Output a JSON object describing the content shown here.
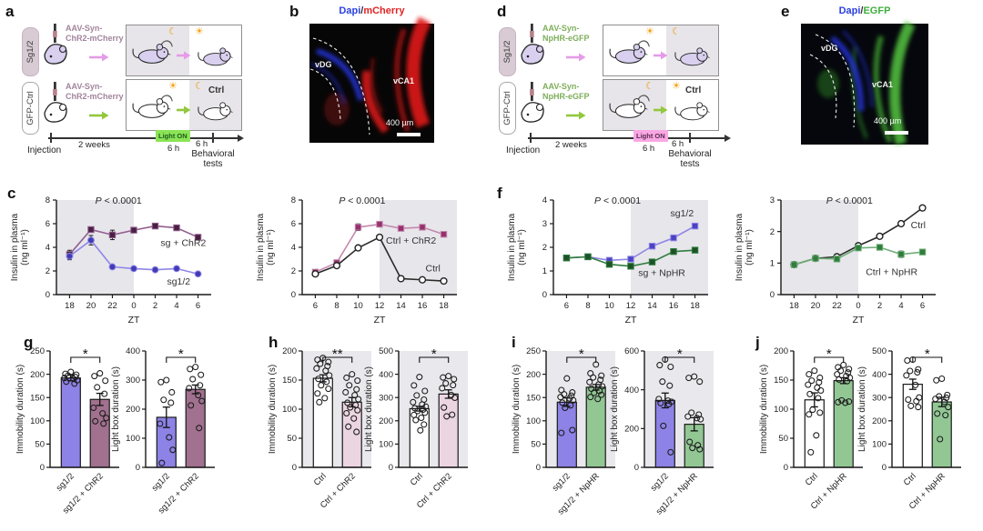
{
  "panels": {
    "a": "a",
    "b": "b",
    "c": "c",
    "d": "d",
    "e": "e",
    "f": "f",
    "g": "g",
    "h": "h",
    "i": "i",
    "j": "j"
  },
  "colors": {
    "mouse_purple": "#D9CFEF",
    "mouse_white": "#ffffff",
    "arrow_pink": "#E59BE8",
    "arrow_green": "#93C83E",
    "lighton_green_bg": "#8BE455",
    "lighton_green_text": "#1E5B1E",
    "lighton_pink_bg": "#F9A7E3",
    "lighton_pink_text": "#5A2A52",
    "virus_chr2": "#A2849C",
    "virus_nphr": "#7FAE5B",
    "dapi_blue": "#2B3FE0",
    "mcherry_red": "#E02424",
    "egfp_green": "#3FAE3F",
    "slash_dark": "#333333"
  },
  "panel_a": {
    "group1": "Sg1/2",
    "group2": "GFP-Ctrl",
    "virus1_line1": "AAV-Syn-",
    "virus1_line2": "ChR2-mCherry",
    "virus2_line1": "AAV-Syn-",
    "virus2_line2": "ChR2-mCherry",
    "ctrl": "Ctrl",
    "timeline": {
      "injection": "Injection",
      "weeks": "2 weeks",
      "light_on": "Light ON",
      "dur_light": "6 h",
      "dur_post": "6 h",
      "behavioral": "Behavioral tests"
    }
  },
  "panel_b": {
    "title1": "Dapi",
    "slash": "/",
    "title2": "mCherry",
    "region1": "vDG",
    "region2": "vCA1",
    "scale": "400 µm"
  },
  "panel_d": {
    "group1": "Sg1/2",
    "group2": "GFP-Ctrl",
    "virus1_line1": "AAV-Syn-",
    "virus1_line2": "NpHR-eGFP",
    "virus2_line1": "AAV-Syn-",
    "virus2_line2": "NpHR-eGFP",
    "ctrl": "Ctrl",
    "timeline": {
      "injection": "Injection",
      "weeks": "2 weeks",
      "light_on": "Light ON",
      "dur_light": "6 h",
      "dur_post": "6 h",
      "behavioral": "Behavioral tests"
    }
  },
  "panel_e": {
    "title1": "Dapi",
    "slash": "/",
    "title2": "EGFP",
    "region1": "vDG",
    "region2": "vCA1",
    "scale": "400 µm"
  },
  "chart_data": [
    {
      "id": "c1",
      "panel": "c",
      "type": "line",
      "xlabel": "ZT",
      "ylabel1": "Insulin in plasma",
      "ylabel2": "(ng ml⁻¹)",
      "categories": [
        "18",
        "20",
        "22",
        "0",
        "2",
        "4",
        "6"
      ],
      "ylim": [
        0,
        8
      ],
      "yticks": [
        0,
        2,
        4,
        6,
        8
      ],
      "shade": [
        -0.8,
        3
      ],
      "p_label": "P < 0.0001",
      "p_pos": [
        1.2,
        7.7
      ],
      "series": [
        {
          "name": "sg + ChR2",
          "color": "#915F8E",
          "marker": "square",
          "marker_fill": "#4A1F42",
          "values": [
            3.4,
            5.5,
            5.05,
            5.45,
            5.8,
            5.65,
            4.85
          ],
          "err": [
            0.35,
            0.2,
            0.4,
            0.12,
            0.1,
            0.12,
            0.1
          ],
          "label_at": [
            4.25,
            4.1
          ]
        },
        {
          "name": "sg1/2",
          "color": "#8F85E6",
          "marker": "circle",
          "marker_fill": "#423BB5",
          "values": [
            3.25,
            4.6,
            2.35,
            2.2,
            2.1,
            2.2,
            1.75
          ],
          "err": [
            0.3,
            0.4,
            0.12,
            0.1,
            0.1,
            0.1,
            0.1
          ],
          "label_at": [
            4.55,
            0.85
          ]
        }
      ]
    },
    {
      "id": "c2",
      "panel": "c",
      "type": "line",
      "xlabel": "ZT",
      "ylabel1": "Insulin in plasma",
      "ylabel2": "(ng ml⁻¹)",
      "categories": [
        "6",
        "8",
        "10",
        "12",
        "14",
        "16",
        "18"
      ],
      "ylim": [
        0,
        8
      ],
      "yticks": [
        0,
        2,
        4,
        6,
        8
      ],
      "shade": [
        3,
        6.8
      ],
      "p_label": "P < 0.0001",
      "p_pos": [
        1.1,
        7.7
      ],
      "series": [
        {
          "name": "Ctrl + ChR2",
          "color": "#C489AE",
          "marker": "square",
          "marker_fill": "#96316E",
          "values": [
            1.9,
            2.7,
            5.7,
            5.95,
            5.6,
            5.7,
            5.1
          ],
          "err": [
            0.12,
            0.15,
            0.28,
            0.15,
            0.12,
            0.12,
            0.15
          ],
          "label_at": [
            3.3,
            4.3
          ]
        },
        {
          "name": "Ctrl",
          "color": "#2B2B2B",
          "marker": "circle-open",
          "marker_fill": "#ffffff",
          "values": [
            1.75,
            2.45,
            3.95,
            4.85,
            1.35,
            1.25,
            1.15
          ],
          "err": [
            0.12,
            0.12,
            0.15,
            0.12,
            0.1,
            0.08,
            0.08
          ],
          "label_at": [
            5.15,
            1.95
          ]
        }
      ]
    },
    {
      "id": "f1",
      "panel": "f",
      "type": "line",
      "xlabel": "ZT",
      "ylabel1": "Insulin in plasma",
      "ylabel2": "(ng ml⁻¹)",
      "categories": [
        "6",
        "8",
        "10",
        "12",
        "14",
        "16",
        "18"
      ],
      "ylim": [
        0,
        4
      ],
      "yticks": [
        0,
        1,
        2,
        3,
        4
      ],
      "shade": [
        3,
        6.8
      ],
      "p_label": "P < 0.0001",
      "p_pos": [
        1.3,
        3.85
      ],
      "series": [
        {
          "name": "sg1/2",
          "color": "#8F85E6",
          "marker": "square",
          "marker_fill": "#4A43C2",
          "values": [
            1.55,
            1.6,
            1.45,
            1.5,
            2.05,
            2.4,
            2.9
          ],
          "err": [
            0.06,
            0.07,
            0.08,
            0.07,
            0.07,
            0.07,
            0.08
          ],
          "label_at": [
            4.85,
            3.3
          ]
        },
        {
          "name": "sg + NpHR",
          "color": "#2F7D3C",
          "marker": "square",
          "marker_fill": "#1D5226",
          "values": [
            1.55,
            1.6,
            1.28,
            1.2,
            1.38,
            1.82,
            1.88
          ],
          "err": [
            0.06,
            0.06,
            0.08,
            0.07,
            0.07,
            0.07,
            0.07
          ],
          "label_at": [
            3.35,
            0.78
          ]
        }
      ]
    },
    {
      "id": "f2",
      "panel": "f",
      "type": "line",
      "xlabel": "ZT",
      "ylabel1": "Insulin in plasma",
      "ylabel2": "(ng ml⁻¹)",
      "categories": [
        "18",
        "20",
        "22",
        "0",
        "2",
        "4",
        "6"
      ],
      "ylim": [
        0,
        3
      ],
      "yticks": [
        0,
        1,
        2,
        3
      ],
      "shade": [
        -0.8,
        3
      ],
      "p_label": "P < 0.0001",
      "p_pos": [
        1.5,
        2.88
      ],
      "series": [
        {
          "name": "Ctrl",
          "color": "#2B2B2B",
          "marker": "circle-open",
          "marker_fill": "#ffffff",
          "values": [
            0.95,
            1.15,
            1.2,
            1.55,
            1.85,
            2.25,
            2.75
          ],
          "err": [
            0.05,
            0.05,
            0.06,
            0.06,
            0.05,
            0.06,
            0.06
          ],
          "label_at": [
            5.45,
            2.1
          ]
        },
        {
          "name": "Ctrl + NpHR",
          "color": "#6FAE77",
          "marker": "square",
          "marker_fill": "#2F7D3C",
          "values": [
            0.95,
            1.15,
            1.13,
            1.48,
            1.5,
            1.28,
            1.35
          ],
          "err": [
            0.05,
            0.05,
            0.08,
            0.06,
            0.06,
            0.1,
            0.08
          ],
          "label_at": [
            3.35,
            0.62
          ]
        }
      ]
    },
    {
      "id": "g1",
      "panel": "g",
      "type": "bar",
      "ylabel": "Immobility duration (s)",
      "ylim": [
        0,
        250
      ],
      "yticks": [
        0,
        50,
        100,
        150,
        200,
        250
      ],
      "plot_bg": "none",
      "sig": "*",
      "bars": [
        {
          "label": "sg1/2",
          "value": 192,
          "err": 6,
          "fill": "#8D82E5",
          "dots": [
            205,
            201,
            199,
            197,
            194,
            192,
            190,
            187,
            184,
            180
          ]
        },
        {
          "label": "sg1/2 + ChR2",
          "value": 146,
          "err": 13,
          "fill": "#A1718F",
          "dots": [
            202,
            196,
            186,
            172,
            158,
            128,
            116,
            106,
            99,
            94
          ]
        }
      ]
    },
    {
      "id": "g2",
      "panel": "g",
      "type": "bar",
      "ylabel": "Light box duration (s)",
      "ylim": [
        0,
        400
      ],
      "yticks": [
        0,
        100,
        200,
        300,
        400
      ],
      "plot_bg": "none",
      "sig": "*",
      "bars": [
        {
          "label": "sg1/2",
          "value": 172,
          "err": 35,
          "fill": "#8D82E5",
          "dots": [
            300,
            293,
            258,
            232,
            222,
            150,
            103,
            60,
            15
          ]
        },
        {
          "label": "sg1/2 + ChR2",
          "value": 268,
          "err": 15,
          "fill": "#A1718F",
          "dots": [
            345,
            338,
            318,
            303,
            282,
            272,
            248,
            228,
            213,
            135
          ]
        }
      ]
    },
    {
      "id": "h1",
      "panel": "h",
      "type": "bar",
      "ylabel": "Immobility duration (s)",
      "ylim": [
        0,
        200
      ],
      "yticks": [
        0,
        50,
        100,
        150,
        200
      ],
      "plot_bg": "#E9E8EC",
      "sig": "**",
      "bars": [
        {
          "label": "Ctrl",
          "value": 153,
          "err": 6,
          "fill": "#ffffff",
          "dots": [
            188,
            185,
            181,
            178,
            174,
            170,
            166,
            158,
            152,
            147,
            141,
            135,
            127,
            119,
            112
          ]
        },
        {
          "label": "Ctrl + ChR2",
          "value": 112,
          "err": 8,
          "fill": "#EBD5E1",
          "dots": [
            160,
            154,
            149,
            141,
            134,
            129,
            124,
            117,
            111,
            107,
            103,
            98,
            93,
            84,
            70,
            61
          ]
        }
      ]
    },
    {
      "id": "h2",
      "panel": "h",
      "type": "bar",
      "ylabel": "Light box duration (s)",
      "ylim": [
        0,
        500
      ],
      "yticks": [
        0,
        100,
        200,
        300,
        400,
        500
      ],
      "plot_bg": "#E9E8EC",
      "sig": "*",
      "bars": [
        {
          "label": "Ctrl",
          "value": 252,
          "err": 10,
          "fill": "#ffffff",
          "dots": [
            388,
            352,
            328,
            309,
            291,
            280,
            270,
            261,
            254,
            248,
            242,
            235,
            225,
            213,
            203,
            184,
            159
          ]
        },
        {
          "label": "Ctrl + ChR2",
          "value": 315,
          "err": 18,
          "fill": "#EBD5E1",
          "dots": [
            392,
            386,
            379,
            361,
            353,
            340,
            311,
            299,
            257,
            226,
            219
          ]
        }
      ]
    },
    {
      "id": "i1",
      "panel": "i",
      "type": "bar",
      "ylabel": "Immobility duration (s)",
      "ylim": [
        0,
        250
      ],
      "yticks": [
        0,
        50,
        100,
        150,
        200,
        250
      ],
      "plot_bg": "#E9E8EC",
      "sig": "*",
      "bars": [
        {
          "label": "sg1/2",
          "value": 140,
          "err": 9,
          "fill": "#8D82E5",
          "dots": [
            191,
            166,
            161,
            157,
            154,
            151,
            148,
            144,
            139,
            133,
            128,
            80,
            74
          ]
        },
        {
          "label": "sg1/2 + NpHR",
          "value": 172,
          "err": 6,
          "fill": "#92C794",
          "dots": [
            221,
            202,
            197,
            193,
            188,
            183,
            178,
            174,
            169,
            164,
            160,
            156,
            151,
            147
          ]
        }
      ]
    },
    {
      "id": "i2",
      "panel": "i",
      "type": "bar",
      "ylabel": "Light box duration (s)",
      "ylim": [
        0,
        600
      ],
      "yticks": [
        0,
        200,
        400,
        600
      ],
      "plot_bg": "#E9E8EC",
      "sig": "*",
      "bars": [
        {
          "label": "sg1/2",
          "value": 345,
          "err": 38,
          "fill": "#8D82E5",
          "dots": [
            556,
            527,
            518,
            442,
            421,
            352,
            344,
            338,
            331,
            326,
            214,
            78
          ]
        },
        {
          "label": "sg1/2 + NpHR",
          "value": 222,
          "err": 34,
          "fill": "#92C794",
          "dots": [
            468,
            461,
            442,
            282,
            272,
            262,
            254,
            248,
            131,
            114,
            100,
            93
          ]
        }
      ]
    },
    {
      "id": "j1",
      "panel": "j",
      "type": "bar",
      "ylabel": "Immobility duration (s)",
      "ylim": [
        0,
        200
      ],
      "yticks": [
        0,
        50,
        100,
        150,
        200
      ],
      "plot_bg": "none",
      "sig": "*",
      "bars": [
        {
          "label": "Ctrl",
          "value": 116,
          "err": 12,
          "fill": "#ffffff",
          "dots": [
            166,
            160,
            154,
            149,
            146,
            142,
            137,
            132,
            126,
            119,
            99,
            94,
            91,
            55,
            26
          ]
        },
        {
          "label": "Ctrl + NpHR",
          "value": 149,
          "err": 5,
          "fill": "#92C794",
          "dots": [
            176,
            172,
            169,
            166,
            163,
            160,
            157,
            154,
            151,
            148,
            115,
            113,
            112,
            111
          ]
        }
      ]
    },
    {
      "id": "j2",
      "panel": "j",
      "type": "bar",
      "ylabel": "Light box duration (s)",
      "ylim": [
        0,
        500
      ],
      "yticks": [
        0,
        100,
        200,
        300,
        400,
        500
      ],
      "plot_bg": "none",
      "sig": "*",
      "bars": [
        {
          "label": "Ctrl",
          "value": 357,
          "err": 22,
          "fill": "#ffffff",
          "dots": [
            463,
            459,
            421,
            414,
            408,
            395,
            354,
            300,
            291,
            284,
            264,
            259
          ]
        },
        {
          "label": "Ctrl + NpHR",
          "value": 281,
          "err": 20,
          "fill": "#92C794",
          "dots": [
            381,
            374,
            311,
            305,
            299,
            294,
            281,
            259,
            231,
            224,
            121
          ]
        }
      ]
    }
  ]
}
